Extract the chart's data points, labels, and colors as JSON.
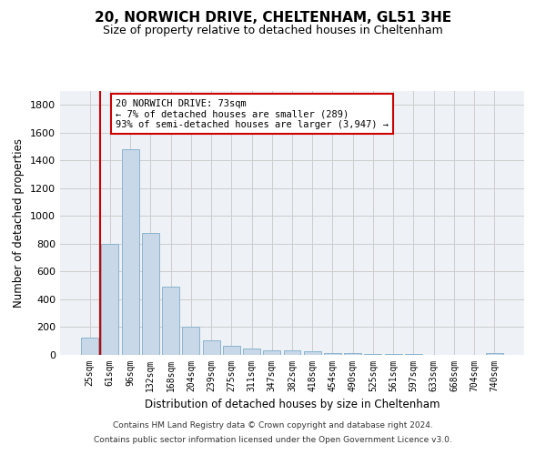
{
  "title": "20, NORWICH DRIVE, CHELTENHAM, GL51 3HE",
  "subtitle": "Size of property relative to detached houses in Cheltenham",
  "xlabel": "Distribution of detached houses by size in Cheltenham",
  "ylabel": "Number of detached properties",
  "bar_color": "#c8d8e8",
  "bar_edge_color": "#8ab4cc",
  "grid_color": "#cccccc",
  "bg_color": "#eef2f7",
  "annotation_line_color": "#cc0000",
  "annotation_box_color": "#cc0000",
  "annotation_text": "20 NORWICH DRIVE: 73sqm\n← 7% of detached houses are smaller (289)\n93% of semi-detached houses are larger (3,947) →",
  "property_size": 73,
  "categories": [
    "25sqm",
    "61sqm",
    "96sqm",
    "132sqm",
    "168sqm",
    "204sqm",
    "239sqm",
    "275sqm",
    "311sqm",
    "347sqm",
    "382sqm",
    "418sqm",
    "454sqm",
    "490sqm",
    "525sqm",
    "561sqm",
    "597sqm",
    "633sqm",
    "668sqm",
    "704sqm",
    "740sqm"
  ],
  "values": [
    125,
    800,
    1480,
    880,
    490,
    205,
    105,
    65,
    45,
    35,
    30,
    25,
    15,
    12,
    8,
    5,
    4,
    3,
    2,
    2,
    15
  ],
  "ylim": [
    0,
    1900
  ],
  "yticks": [
    0,
    200,
    400,
    600,
    800,
    1000,
    1200,
    1400,
    1600,
    1800
  ],
  "footnote1": "Contains HM Land Registry data © Crown copyright and database right 2024.",
  "footnote2": "Contains public sector information licensed under the Open Government Licence v3.0.",
  "bar_width": 0.85,
  "property_line_x": 0.5
}
